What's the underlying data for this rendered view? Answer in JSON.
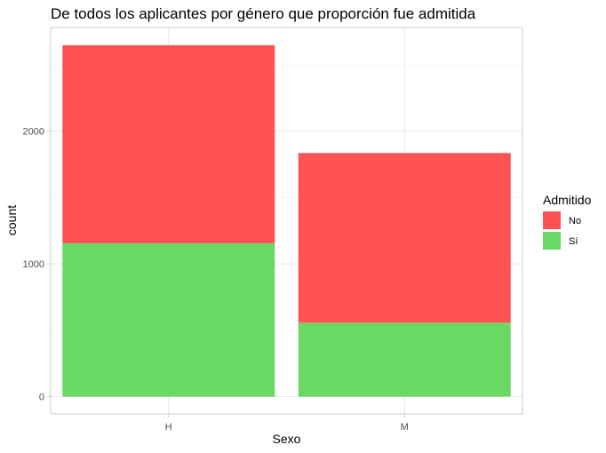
{
  "chart_data": {
    "type": "bar",
    "stacked": true,
    "title": "De todos los aplicantes por género que proporción fue admitida",
    "xlabel": "Sexo",
    "ylabel": "count",
    "categories": [
      "H",
      "M"
    ],
    "series": [
      {
        "name": "Sí",
        "values": [
          1155,
          557
        ],
        "color": "#6ad964"
      },
      {
        "name": "No",
        "values": [
          1492,
          1278
        ],
        "color": "#ff5252"
      }
    ],
    "stack_order_bottom_to_top": [
      "Sí",
      "No"
    ],
    "legend": {
      "title": "Admitido",
      "entries": [
        "No",
        "Sí"
      ],
      "placement": "right"
    },
    "ylim": [
      -130,
      2780
    ],
    "yticks": [
      0,
      1000,
      2000
    ],
    "ytick_labels": [
      "0",
      "1000",
      "2000"
    ],
    "grid": true
  }
}
